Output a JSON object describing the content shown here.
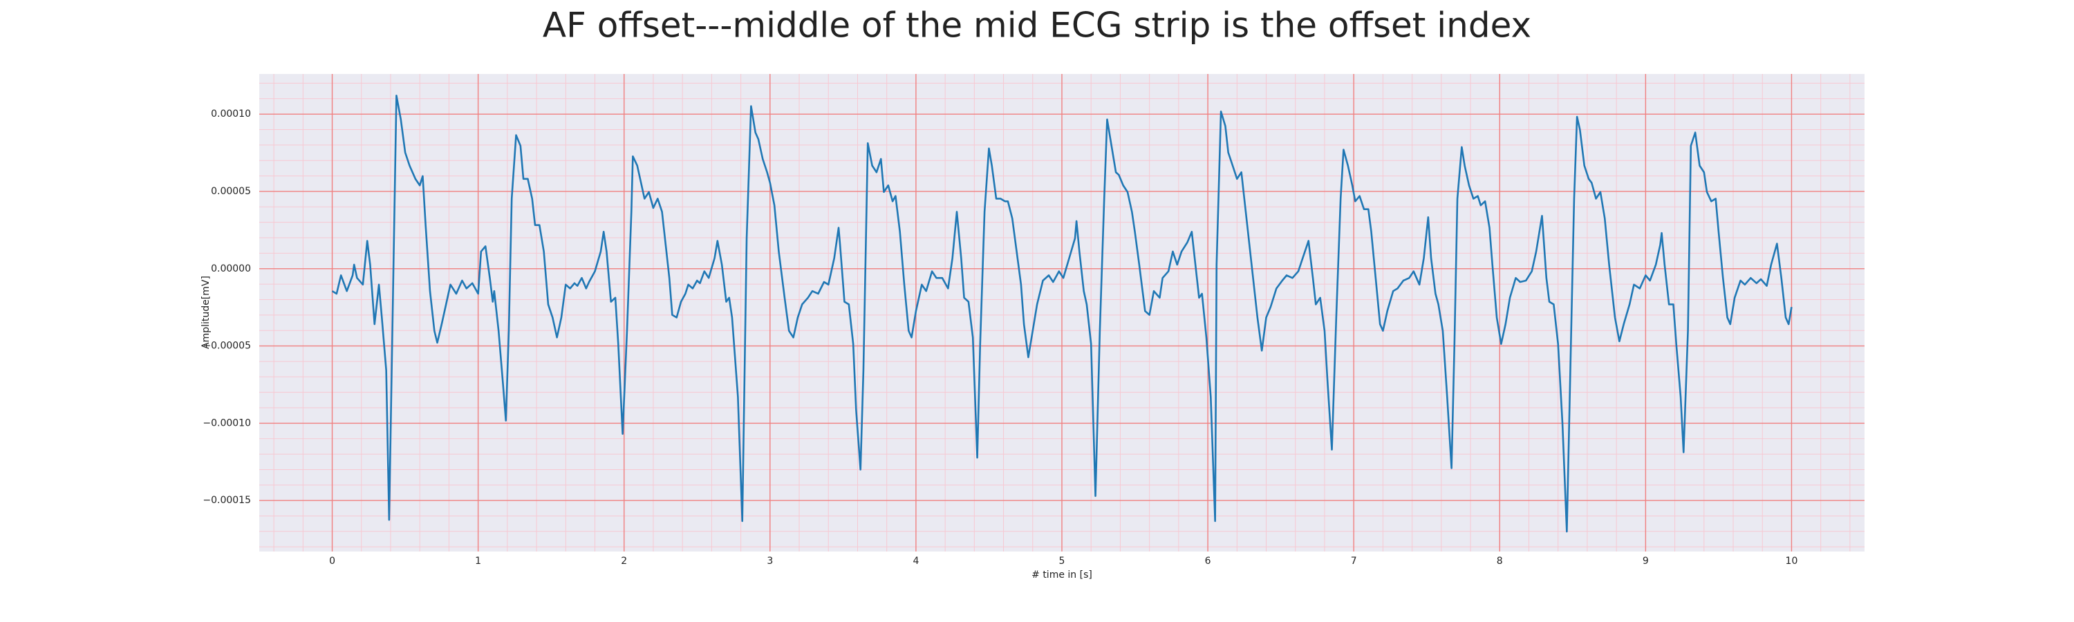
{
  "chart_data": {
    "type": "line",
    "title": "AF offset---middle of the mid ECG strip is the offset index",
    "xlabel": "# time in [s]",
    "ylabel": "Amplitude[mV]",
    "color": "#1f77b4",
    "background": "#eaeaf2",
    "grid": true,
    "grid_color": "#f08080",
    "minor_grid": {
      "color": "#f7c8d2",
      "x_step": 0.2,
      "y_step": 1e-05
    },
    "xlim": [
      -0.5,
      10.5
    ],
    "ylim": [
      -0.000183,
      0.000126
    ],
    "xticks": [
      0,
      1,
      2,
      3,
      4,
      5,
      6,
      7,
      8,
      9,
      10
    ],
    "yticks": [
      {
        "value": 0.0001,
        "label": "0.00010"
      },
      {
        "value": 5e-05,
        "label": "0.00005"
      },
      {
        "value": 0,
        "label": "0.00000"
      },
      {
        "value": -5e-05,
        "label": "−0.00005"
      },
      {
        "value": -0.0001,
        "label": "−0.00010"
      },
      {
        "value": -0.00015,
        "label": "−0.00015"
      }
    ],
    "x": [
      0,
      0.03,
      0.06,
      0.1,
      0.14,
      0.15,
      0.17,
      0.21,
      0.24,
      0.26,
      0.29,
      0.32,
      0.34,
      0.37,
      0.39,
      0.42,
      0.44,
      0.47,
      0.5,
      0.53,
      0.57,
      0.6,
      0.62,
      0.64,
      0.67,
      0.7,
      0.72,
      0.75,
      0.78,
      0.81,
      0.85,
      0.89,
      0.92,
      0.96,
      1.0,
      1.02,
      1.05,
      1.08,
      1.1,
      1.11,
      1.14,
      1.17,
      1.19,
      1.21,
      1.23,
      1.26,
      1.29,
      1.31,
      1.34,
      1.37,
      1.39,
      1.42,
      1.45,
      1.48,
      1.51,
      1.54,
      1.57,
      1.6,
      1.63,
      1.66,
      1.68,
      1.71,
      1.74,
      1.76,
      1.8,
      1.84,
      1.86,
      1.88,
      1.91,
      1.94,
      1.96,
      1.99,
      2.02,
      2.05,
      2.06,
      2.09,
      2.12,
      2.14,
      2.17,
      2.2,
      2.23,
      2.26,
      2.28,
      2.31,
      2.33,
      2.36,
      2.39,
      2.42,
      2.44,
      2.47,
      2.5,
      2.52,
      2.55,
      2.58,
      2.62,
      2.64,
      2.67,
      2.7,
      2.72,
      2.74,
      2.78,
      2.81,
      2.84,
      2.87,
      2.9,
      2.92,
      2.95,
      2.98,
      3.0,
      3.03,
      3.06,
      3.1,
      3.13,
      3.16,
      3.19,
      3.22,
      3.26,
      3.29,
      3.33,
      3.37,
      3.4,
      3.44,
      3.47,
      3.48,
      3.51,
      3.54,
      3.57,
      3.59,
      3.62,
      3.64,
      3.66,
      3.67,
      3.7,
      3.73,
      3.76,
      3.78,
      3.81,
      3.84,
      3.86,
      3.89,
      3.92,
      3.95,
      3.97,
      4.0,
      4.04,
      4.07,
      4.11,
      4.14,
      4.18,
      4.22,
      4.25,
      4.28,
      4.31,
      4.33,
      4.36,
      4.39,
      4.42,
      4.44,
      4.47,
      4.5,
      4.52,
      4.55,
      4.58,
      4.61,
      4.63,
      4.66,
      4.69,
      4.72,
      4.74,
      4.77,
      4.8,
      4.83,
      4.87,
      4.91,
      4.94,
      4.98,
      5.01,
      5.05,
      5.09,
      5.1,
      5.12,
      5.15,
      5.17,
      5.2,
      5.23,
      5.26,
      5.29,
      5.31,
      5.34,
      5.37,
      5.39,
      5.42,
      5.45,
      5.48,
      5.5,
      5.53,
      5.57,
      5.6,
      5.63,
      5.67,
      5.69,
      5.73,
      5.76,
      5.79,
      5.82,
      5.86,
      5.89,
      5.91,
      5.94,
      5.96,
      5.99,
      6.02,
      6.05,
      6.06,
      6.09,
      6.12,
      6.14,
      6.17,
      6.2,
      6.23,
      6.25,
      6.28,
      6.32,
      6.34,
      6.37,
      6.4,
      6.43,
      6.47,
      6.51,
      6.54,
      6.58,
      6.62,
      6.65,
      6.69,
      6.72,
      6.74,
      6.77,
      6.8,
      6.82,
      6.85,
      6.88,
      6.91,
      6.93,
      6.96,
      6.99,
      7.01,
      7.04,
      7.07,
      7.1,
      7.12,
      7.15,
      7.18,
      7.2,
      7.23,
      7.27,
      7.3,
      7.34,
      7.38,
      7.41,
      7.45,
      7.48,
      7.51,
      7.53,
      7.56,
      7.58,
      7.61,
      7.64,
      7.67,
      7.69,
      7.71,
      7.74,
      7.76,
      7.79,
      7.82,
      7.85,
      7.87,
      7.9,
      7.93,
      7.95,
      7.98,
      8.01,
      8.04,
      8.07,
      8.11,
      8.14,
      8.18,
      8.22,
      8.25,
      8.29,
      8.32,
      8.34,
      8.37,
      8.4,
      8.43,
      8.46,
      8.49,
      8.51,
      8.53,
      8.55,
      8.58,
      8.61,
      8.63,
      8.66,
      8.69,
      8.72,
      8.75,
      8.79,
      8.82,
      8.85,
      8.89,
      8.92,
      8.96,
      9.0,
      9.03,
      9.07,
      9.1,
      9.11,
      9.13,
      9.16,
      9.19,
      9.21,
      9.24,
      9.26,
      9.29,
      9.31,
      9.34,
      9.37,
      9.4,
      9.42,
      9.45,
      9.48,
      9.5,
      9.53,
      9.56,
      9.58,
      9.61,
      9.65,
      9.68,
      9.72,
      9.76,
      9.79,
      9.83,
      9.86,
      9.9,
      9.93,
      9.96,
      9.98,
      10.0
    ],
    "values": [
      -1.45e-05,
      -1.62e-05,
      -4.3e-06,
      -1.45e-05,
      -4.3e-06,
      2.6e-06,
      -6e-06,
      -1.03e-05,
      1.8e-05,
      2.6e-06,
      -3.59e-05,
      -1.03e-05,
      -3.16e-05,
      -6.58e-05,
      -0.0001625,
      2.6e-06,
      0.000112,
      9.66e-05,
      7.52e-05,
      6.67e-05,
      5.81e-05,
      5.39e-05,
      5.99e-05,
      2.82e-05,
      -1.45e-05,
      -4.02e-05,
      -4.79e-05,
      -3.59e-05,
      -2.31e-05,
      -1.03e-05,
      -1.62e-05,
      -7.7e-06,
      -1.28e-05,
      -9.4e-06,
      -1.62e-05,
      1.11e-05,
      1.45e-05,
      -6e-06,
      -2.14e-05,
      -1.45e-05,
      -4.02e-05,
      -7.44e-05,
      -9.83e-05,
      -4.02e-05,
      4.53e-05,
      8.64e-05,
      7.95e-05,
      5.81e-05,
      5.81e-05,
      4.53e-05,
      2.82e-05,
      2.82e-05,
      1.11e-05,
      -2.31e-05,
      -3.16e-05,
      -4.45e-05,
      -3.16e-05,
      -1.03e-05,
      -1.28e-05,
      -9.4e-06,
      -1.11e-05,
      -6e-06,
      -1.28e-05,
      -8.6e-06,
      -1.7e-06,
      1.11e-05,
      2.39e-05,
      1.11e-05,
      -2.14e-05,
      -1.88e-05,
      -4.87e-05,
      -0.0001069,
      -4.02e-05,
      3.68e-05,
      7.27e-05,
      6.67e-05,
      5.39e-05,
      4.53e-05,
      4.96e-05,
      3.93e-05,
      4.53e-05,
      3.68e-05,
      1.97e-05,
      -6e-06,
      -2.99e-05,
      -3.16e-05,
      -2.14e-05,
      -1.62e-05,
      -1.03e-05,
      -1.28e-05,
      -7.7e-06,
      -9.4e-06,
      -1.7e-06,
      -6e-06,
      6.8e-06,
      1.8e-05,
      2.6e-06,
      -2.14e-05,
      -1.88e-05,
      -3.16e-05,
      -8.29e-05,
      -0.0001633,
      1.97e-05,
      0.0001052,
      8.81e-05,
      8.38e-05,
      7.1e-05,
      6.24e-05,
      5.56e-05,
      4.1e-05,
      1.11e-05,
      -1.88e-05,
      -4.02e-05,
      -4.45e-05,
      -3.16e-05,
      -2.31e-05,
      -1.88e-05,
      -1.45e-05,
      -1.62e-05,
      -8.6e-06,
      -1.03e-05,
      6.8e-06,
      2.65e-05,
      1.54e-05,
      -2.14e-05,
      -2.31e-05,
      -4.87e-05,
      -9.15e-05,
      -0.00013,
      -6.58e-05,
      3.25e-05,
      8.12e-05,
      6.67e-05,
      6.24e-05,
      7.1e-05,
      4.96e-05,
      5.39e-05,
      4.36e-05,
      4.7e-05,
      2.39e-05,
      -1.03e-05,
      -4.02e-05,
      -4.45e-05,
      -2.74e-05,
      -1.03e-05,
      -1.45e-05,
      -1.7e-06,
      -6e-06,
      -6e-06,
      -1.28e-05,
      6.8e-06,
      3.68e-05,
      6.8e-06,
      -1.88e-05,
      -2.14e-05,
      -4.45e-05,
      -0.0001223,
      -4.87e-05,
      3.68e-05,
      7.78e-05,
      6.67e-05,
      4.53e-05,
      4.53e-05,
      4.36e-05,
      4.36e-05,
      3.25e-05,
      1.11e-05,
      -1.03e-05,
      -3.59e-05,
      -5.73e-05,
      -4.02e-05,
      -2.31e-05,
      -7.7e-06,
      -4.3e-06,
      -8.6e-06,
      -1.7e-06,
      -6e-06,
      6.8e-06,
      1.97e-05,
      3.08e-05,
      1.11e-05,
      -1.45e-05,
      -2.31e-05,
      -4.87e-05,
      -0.0001471,
      -4.02e-05,
      4.53e-05,
      9.66e-05,
      7.95e-05,
      6.24e-05,
      6.07e-05,
      5.39e-05,
      4.96e-05,
      3.68e-05,
      2.39e-05,
      2.6e-06,
      -2.74e-05,
      -2.99e-05,
      -1.45e-05,
      -1.88e-05,
      -6e-06,
      -1.7e-06,
      1.11e-05,
      2.6e-06,
      1.11e-05,
      1.71e-05,
      2.39e-05,
      6.8e-06,
      -1.88e-05,
      -1.62e-05,
      -4.45e-05,
      -8.29e-05,
      -0.0001633,
      2.6e-06,
      0.0001017,
      9.23e-05,
      7.52e-05,
      6.67e-05,
      5.81e-05,
      6.24e-05,
      4.53e-05,
      1.97e-05,
      -1.45e-05,
      -3.16e-05,
      -5.3e-05,
      -3.16e-05,
      -2.48e-05,
      -1.28e-05,
      -7.7e-06,
      -4.3e-06,
      -6e-06,
      -1.7e-06,
      6.8e-06,
      1.8e-05,
      -6e-06,
      -2.31e-05,
      -1.88e-05,
      -4.02e-05,
      -7.27e-05,
      -0.0001171,
      -3.16e-05,
      4.53e-05,
      7.7e-05,
      6.67e-05,
      5.39e-05,
      4.36e-05,
      4.7e-05,
      3.85e-05,
      3.85e-05,
      2.39e-05,
      -6e-06,
      -3.59e-05,
      -4.02e-05,
      -2.74e-05,
      -1.45e-05,
      -1.28e-05,
      -7.7e-06,
      -6e-06,
      -1.7e-06,
      -1.03e-05,
      6.8e-06,
      3.33e-05,
      6.8e-06,
      -1.62e-05,
      -2.31e-05,
      -4.02e-05,
      -8.29e-05,
      -0.0001291,
      -4.87e-05,
      4.53e-05,
      7.87e-05,
      6.67e-05,
      5.39e-05,
      4.53e-05,
      4.7e-05,
      4.1e-05,
      4.36e-05,
      2.65e-05,
      2.6e-06,
      -3.16e-05,
      -4.87e-05,
      -3.59e-05,
      -1.88e-05,
      -6e-06,
      -8.6e-06,
      -7.7e-06,
      -1.7e-06,
      1.11e-05,
      3.42e-05,
      -6e-06,
      -2.14e-05,
      -2.31e-05,
      -4.87e-05,
      -0.0001,
      -0.0001701,
      -4.02e-05,
      4.53e-05,
      9.83e-05,
      8.98e-05,
      6.67e-05,
      5.81e-05,
      5.56e-05,
      4.53e-05,
      4.96e-05,
      3.25e-05,
      2.6e-06,
      -3.16e-05,
      -4.7e-05,
      -3.59e-05,
      -2.31e-05,
      -1.03e-05,
      -1.28e-05,
      -4.3e-06,
      -7.7e-06,
      2.6e-06,
      1.54e-05,
      2.31e-05,
      2.6e-06,
      -2.31e-05,
      -2.31e-05,
      -4.87e-05,
      -8.29e-05,
      -0.0001188,
      -4.02e-05,
      7.95e-05,
      8.81e-05,
      6.67e-05,
      6.24e-05,
      4.96e-05,
      4.36e-05,
      4.53e-05,
      2.39e-05,
      -6e-06,
      -3.16e-05,
      -3.59e-05,
      -1.88e-05,
      -7.7e-06,
      -1.03e-05,
      -6e-06,
      -9.4e-06,
      -6.8e-06,
      -1.11e-05,
      2.6e-06,
      1.62e-05,
      -6e-06,
      -3.16e-05,
      -3.59e-05,
      -2.48e-05
    ]
  }
}
